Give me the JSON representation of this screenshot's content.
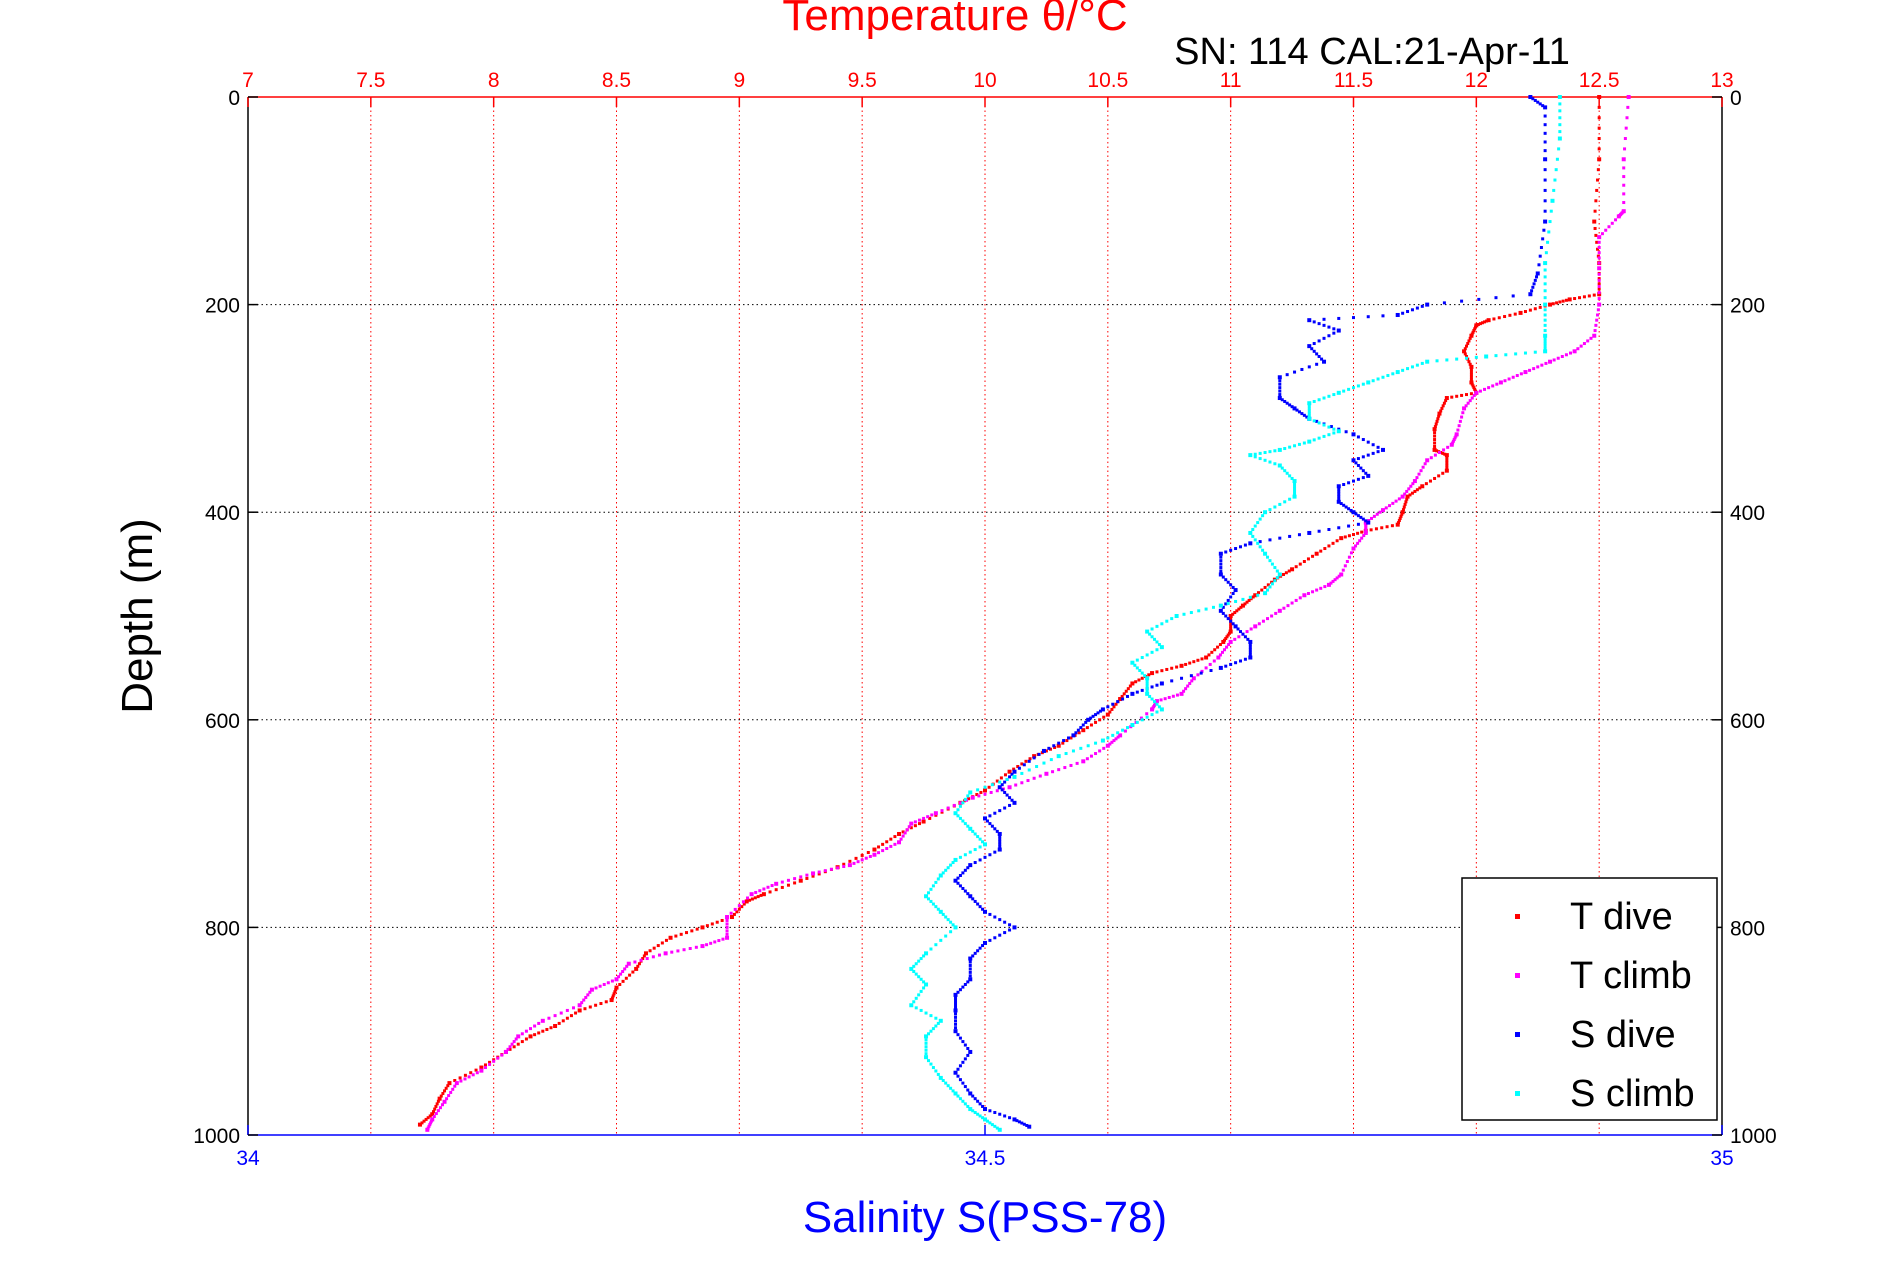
{
  "title": "Temperature θ/°C",
  "subtitle": "SN: 114  CAL:21-Apr-11",
  "colors": {
    "temperature_axis": "#ff0000",
    "salinity_axis": "#0000ff",
    "t_dive": "#ff0000",
    "t_climb": "#ff00ff",
    "s_dive": "#0000ff",
    "s_climb": "#00ffff"
  },
  "chart_data": {
    "type": "scatter",
    "title": "Temperature θ/°C",
    "xlabel_top": "Temperature θ/°C",
    "xlabel_bottom": "Salinity S(PSS-78)",
    "ylabel": "Depth (m)",
    "y_reversed": true,
    "ylim": [
      0,
      1000
    ],
    "y_ticks": [
      0,
      200,
      400,
      600,
      800,
      1000
    ],
    "x_top_lim": [
      7,
      13
    ],
    "x_top_ticks": [
      "7",
      "7.5",
      "8",
      "8.5",
      "9",
      "9.5",
      "10",
      "10.5",
      "11",
      "11.5",
      "12",
      "12.5",
      "13"
    ],
    "x_bottom_lim": [
      34,
      35
    ],
    "x_bottom_ticks": [
      "34",
      "34.5",
      "35"
    ],
    "grid": true,
    "legend_position": "bottom-right",
    "series": [
      {
        "name": "T dive",
        "axis": "temperature",
        "color": "#ff0000",
        "points": [
          [
            12.5,
            0
          ],
          [
            12.5,
            60
          ],
          [
            12.48,
            120
          ],
          [
            12.5,
            160
          ],
          [
            12.5,
            190
          ],
          [
            12.38,
            195
          ],
          [
            12.3,
            200
          ],
          [
            12.18,
            208
          ],
          [
            12.05,
            215
          ],
          [
            12.0,
            220
          ],
          [
            11.98,
            230
          ],
          [
            11.95,
            245
          ],
          [
            11.98,
            260
          ],
          [
            11.98,
            275
          ],
          [
            12.0,
            285
          ],
          [
            11.88,
            290
          ],
          [
            11.85,
            305
          ],
          [
            11.83,
            320
          ],
          [
            11.83,
            340
          ],
          [
            11.88,
            345
          ],
          [
            11.88,
            360
          ],
          [
            11.78,
            375
          ],
          [
            11.72,
            385
          ],
          [
            11.7,
            400
          ],
          [
            11.68,
            412
          ],
          [
            11.55,
            418
          ],
          [
            11.45,
            425
          ],
          [
            11.35,
            440
          ],
          [
            11.25,
            455
          ],
          [
            11.18,
            465
          ],
          [
            11.1,
            480
          ],
          [
            11.05,
            490
          ],
          [
            11.0,
            500
          ],
          [
            11.0,
            515
          ],
          [
            10.97,
            525
          ],
          [
            10.9,
            540
          ],
          [
            10.8,
            548
          ],
          [
            10.68,
            555
          ],
          [
            10.6,
            565
          ],
          [
            10.55,
            580
          ],
          [
            10.5,
            595
          ],
          [
            10.4,
            610
          ],
          [
            10.3,
            625
          ],
          [
            10.2,
            635
          ],
          [
            10.1,
            650
          ],
          [
            10.0,
            668
          ],
          [
            9.9,
            680
          ],
          [
            9.75,
            698
          ],
          [
            9.65,
            710
          ],
          [
            9.55,
            725
          ],
          [
            9.4,
            742
          ],
          [
            9.25,
            755
          ],
          [
            9.1,
            768
          ],
          [
            9.03,
            775
          ],
          [
            8.97,
            790
          ],
          [
            8.85,
            800
          ],
          [
            8.72,
            810
          ],
          [
            8.62,
            825
          ],
          [
            8.58,
            840
          ],
          [
            8.5,
            858
          ],
          [
            8.48,
            870
          ],
          [
            8.35,
            880
          ],
          [
            8.25,
            895
          ],
          [
            8.15,
            905
          ],
          [
            8.05,
            920
          ],
          [
            7.95,
            935
          ],
          [
            7.82,
            950
          ],
          [
            7.78,
            965
          ],
          [
            7.75,
            980
          ],
          [
            7.7,
            990
          ]
        ]
      },
      {
        "name": "T climb",
        "axis": "temperature",
        "color": "#ff00ff",
        "points": [
          [
            12.62,
            0
          ],
          [
            12.6,
            60
          ],
          [
            12.6,
            110
          ],
          [
            12.58,
            115
          ],
          [
            12.5,
            135
          ],
          [
            12.5,
            165
          ],
          [
            12.5,
            200
          ],
          [
            12.48,
            230
          ],
          [
            12.4,
            245
          ],
          [
            12.3,
            255
          ],
          [
            12.2,
            265
          ],
          [
            12.1,
            275
          ],
          [
            12.0,
            285
          ],
          [
            11.95,
            300
          ],
          [
            11.92,
            325
          ],
          [
            11.9,
            335
          ],
          [
            11.8,
            350
          ],
          [
            11.75,
            370
          ],
          [
            11.7,
            385
          ],
          [
            11.62,
            398
          ],
          [
            11.55,
            410
          ],
          [
            11.55,
            420
          ],
          [
            11.5,
            435
          ],
          [
            11.45,
            460
          ],
          [
            11.4,
            470
          ],
          [
            11.3,
            480
          ],
          [
            11.2,
            495
          ],
          [
            11.1,
            510
          ],
          [
            11.0,
            525
          ],
          [
            10.95,
            540
          ],
          [
            10.85,
            560
          ],
          [
            10.8,
            575
          ],
          [
            10.7,
            582
          ],
          [
            10.68,
            590
          ],
          [
            10.55,
            615
          ],
          [
            10.5,
            625
          ],
          [
            10.4,
            640
          ],
          [
            10.25,
            652
          ],
          [
            10.1,
            665
          ],
          [
            9.95,
            675
          ],
          [
            9.8,
            690
          ],
          [
            9.7,
            700
          ],
          [
            9.65,
            718
          ],
          [
            9.55,
            730
          ],
          [
            9.45,
            740
          ],
          [
            9.3,
            748
          ],
          [
            9.15,
            758
          ],
          [
            9.05,
            768
          ],
          [
            8.95,
            790
          ],
          [
            8.95,
            810
          ],
          [
            8.85,
            818
          ],
          [
            8.7,
            825
          ],
          [
            8.55,
            835
          ],
          [
            8.5,
            850
          ],
          [
            8.4,
            860
          ],
          [
            8.35,
            875
          ],
          [
            8.2,
            890
          ],
          [
            8.1,
            905
          ],
          [
            8.05,
            920
          ],
          [
            7.95,
            938
          ],
          [
            7.85,
            950
          ],
          [
            7.8,
            968
          ],
          [
            7.75,
            985
          ],
          [
            7.73,
            995
          ]
        ]
      },
      {
        "name": "S dive",
        "axis": "salinity",
        "color": "#0000ff",
        "points": [
          [
            34.87,
            0
          ],
          [
            34.88,
            10
          ],
          [
            34.88,
            60
          ],
          [
            34.88,
            120
          ],
          [
            34.875,
            170
          ],
          [
            34.87,
            190
          ],
          [
            34.8,
            200
          ],
          [
            34.78,
            210
          ],
          [
            34.72,
            215
          ],
          [
            34.74,
            225
          ],
          [
            34.72,
            240
          ],
          [
            34.73,
            255
          ],
          [
            34.7,
            270
          ],
          [
            34.7,
            290
          ],
          [
            34.71,
            300
          ],
          [
            34.72,
            310
          ],
          [
            34.75,
            325
          ],
          [
            34.77,
            340
          ],
          [
            34.75,
            350
          ],
          [
            34.76,
            365
          ],
          [
            34.74,
            375
          ],
          [
            34.74,
            390
          ],
          [
            34.75,
            400
          ],
          [
            34.76,
            410
          ],
          [
            34.72,
            420
          ],
          [
            34.68,
            430
          ],
          [
            34.66,
            440
          ],
          [
            34.66,
            460
          ],
          [
            34.67,
            475
          ],
          [
            34.66,
            495
          ],
          [
            34.67,
            510
          ],
          [
            34.68,
            525
          ],
          [
            34.68,
            540
          ],
          [
            34.66,
            550
          ],
          [
            34.62,
            565
          ],
          [
            34.6,
            575
          ],
          [
            34.58,
            590
          ],
          [
            34.57,
            600
          ],
          [
            34.56,
            615
          ],
          [
            34.54,
            630
          ],
          [
            34.52,
            650
          ],
          [
            34.51,
            665
          ],
          [
            34.52,
            680
          ],
          [
            34.5,
            695
          ],
          [
            34.51,
            710
          ],
          [
            34.51,
            725
          ],
          [
            34.49,
            740
          ],
          [
            34.48,
            755
          ],
          [
            34.49,
            770
          ],
          [
            34.5,
            785
          ],
          [
            34.52,
            800
          ],
          [
            34.5,
            815
          ],
          [
            34.49,
            830
          ],
          [
            34.49,
            850
          ],
          [
            34.48,
            865
          ],
          [
            34.48,
            880
          ],
          [
            34.48,
            900
          ],
          [
            34.49,
            920
          ],
          [
            34.48,
            940
          ],
          [
            34.49,
            960
          ],
          [
            34.5,
            975
          ],
          [
            34.52,
            985
          ],
          [
            34.53,
            992
          ]
        ]
      },
      {
        "name": "S climb",
        "axis": "salinity",
        "color": "#00ffff",
        "points": [
          [
            34.89,
            0
          ],
          [
            34.89,
            40
          ],
          [
            34.885,
            100
          ],
          [
            34.88,
            160
          ],
          [
            34.88,
            200
          ],
          [
            34.88,
            230
          ],
          [
            34.88,
            245
          ],
          [
            34.84,
            250
          ],
          [
            34.8,
            255
          ],
          [
            34.78,
            265
          ],
          [
            34.76,
            275
          ],
          [
            34.74,
            285
          ],
          [
            34.72,
            295
          ],
          [
            34.72,
            310
          ],
          [
            34.74,
            322
          ],
          [
            34.72,
            332
          ],
          [
            34.7,
            340
          ],
          [
            34.68,
            345
          ],
          [
            34.7,
            355
          ],
          [
            34.71,
            370
          ],
          [
            34.71,
            385
          ],
          [
            34.69,
            400
          ],
          [
            34.68,
            420
          ],
          [
            34.69,
            440
          ],
          [
            34.7,
            460
          ],
          [
            34.69,
            478
          ],
          [
            34.66,
            490
          ],
          [
            34.63,
            500
          ],
          [
            34.61,
            515
          ],
          [
            34.62,
            530
          ],
          [
            34.6,
            545
          ],
          [
            34.61,
            560
          ],
          [
            34.61,
            575
          ],
          [
            34.62,
            590
          ],
          [
            34.6,
            605
          ],
          [
            34.58,
            620
          ],
          [
            34.55,
            635
          ],
          [
            34.52,
            655
          ],
          [
            34.49,
            670
          ],
          [
            34.48,
            690
          ],
          [
            34.49,
            705
          ],
          [
            34.5,
            720
          ],
          [
            34.48,
            735
          ],
          [
            34.47,
            750
          ],
          [
            34.46,
            770
          ],
          [
            34.47,
            785
          ],
          [
            34.48,
            800
          ],
          [
            34.46,
            825
          ],
          [
            34.45,
            840
          ],
          [
            34.46,
            855
          ],
          [
            34.45,
            875
          ],
          [
            34.47,
            890
          ],
          [
            34.46,
            905
          ],
          [
            34.46,
            925
          ],
          [
            34.47,
            945
          ],
          [
            34.48,
            960
          ],
          [
            34.49,
            975
          ],
          [
            34.5,
            985
          ],
          [
            34.51,
            995
          ]
        ]
      }
    ]
  }
}
